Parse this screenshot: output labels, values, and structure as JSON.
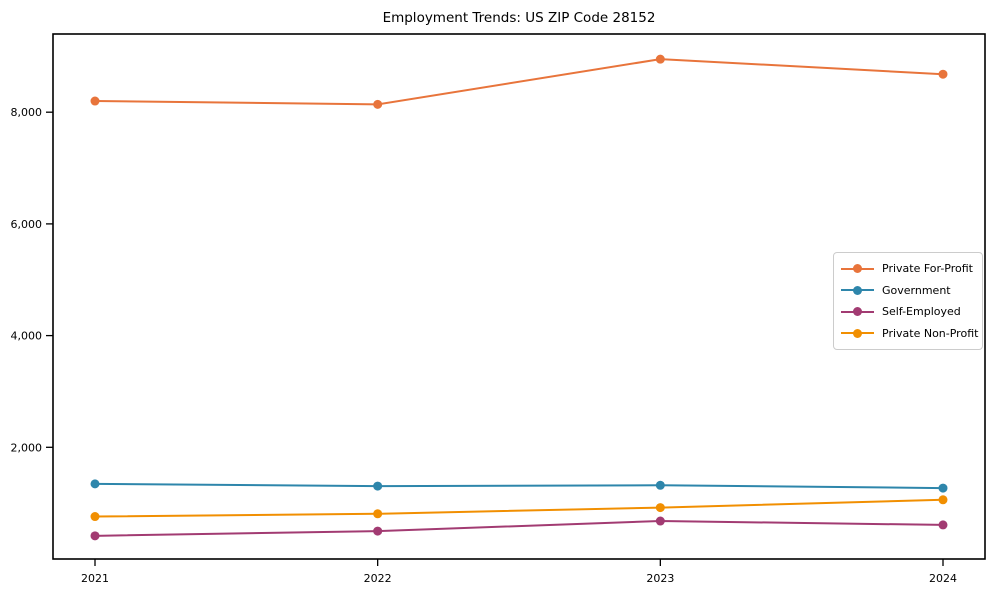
{
  "chart_data": {
    "type": "line",
    "title": "Employment Trends: US ZIP Code 28152",
    "categories": [
      "2021",
      "2022",
      "2023",
      "2024"
    ],
    "series": [
      {
        "name": "Private For-Profit",
        "color": "#E8743B",
        "values": [
          8200,
          8140,
          8950,
          8680
        ]
      },
      {
        "name": "Government",
        "color": "#2E86AB",
        "values": [
          1345,
          1305,
          1320,
          1270
        ]
      },
      {
        "name": "Self-Employed",
        "color": "#A23B72",
        "values": [
          415,
          500,
          680,
          610
        ]
      },
      {
        "name": "Private Non-Profit",
        "color": "#F18F01",
        "values": [
          760,
          810,
          920,
          1060
        ]
      }
    ],
    "xlabel": "",
    "ylabel": "",
    "ylim": [
      0,
      9400
    ],
    "y_ticks": [
      2000,
      4000,
      6000,
      8000
    ],
    "y_tick_labels": [
      "2,000",
      "4,000",
      "6,000",
      "8,000"
    ],
    "grid": false,
    "legend_position": "center right",
    "marker": "circle"
  },
  "style": {
    "background": "#ffffff",
    "spine_color": "#000000",
    "tick_label_color": "#000000",
    "legend_border_color": "#cccccc"
  }
}
